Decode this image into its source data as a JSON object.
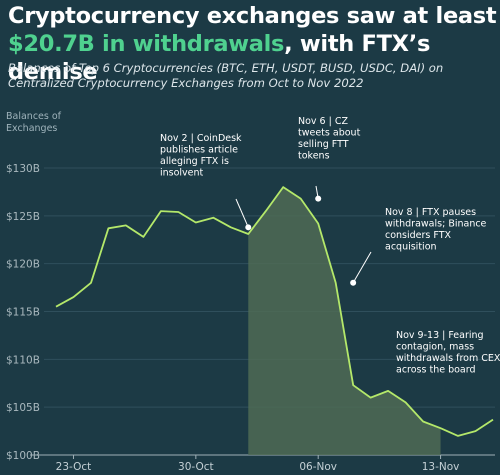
{
  "title": {
    "line1": "Cryptocurrency exchanges saw at least",
    "highlight": "$20.7B in withdrawals",
    "line2_rest": ", with FTX’s demise"
  },
  "subtitle": {
    "line1": "Balances of Top 6 Cryptocurrencies (BTC, ETH, USDT, BUSD, USDC, DAI) on",
    "line2": "Centralized Cryptocurrency Exchanges from Oct to Nov 2022"
  },
  "colors": {
    "background": "#1c3a45",
    "line": "#b4e86a",
    "area": "#4f6b55",
    "grid": "#2f4f5c",
    "highlight_text": "#4fd18f"
  },
  "chart_data": {
    "type": "line",
    "title": "Cryptocurrency exchanges saw at least $20.7B in withdrawals, with FTX’s demise",
    "ylabel_lines": [
      "Balances of",
      "Exchanges"
    ],
    "xlabel": "",
    "ylim": [
      100,
      130
    ],
    "yticks": [
      100,
      105,
      110,
      115,
      120,
      125,
      130
    ],
    "ytick_labels": [
      "$100B",
      "$105B",
      "$110B",
      "$115B",
      "$120B",
      "$125B",
      "$130B"
    ],
    "xlim": [
      "2022-10-22",
      "2022-11-16"
    ],
    "xticks": [
      "2022-10-23",
      "2022-10-30",
      "2022-11-06",
      "2022-11-13"
    ],
    "xtick_labels": [
      "23-Oct",
      "30-Oct",
      "06-Nov",
      "13-Nov"
    ],
    "grid": true,
    "shaded_range": [
      "2022-11-02",
      "2022-11-13"
    ],
    "series": [
      {
        "x": [
          "2022-10-22",
          "2022-10-23",
          "2022-10-24",
          "2022-10-25",
          "2022-10-26",
          "2022-10-27",
          "2022-10-28",
          "2022-10-29",
          "2022-10-30",
          "2022-10-31",
          "2022-11-01",
          "2022-11-02",
          "2022-11-03",
          "2022-11-04",
          "2022-11-05",
          "2022-11-06",
          "2022-11-07",
          "2022-11-08",
          "2022-11-09",
          "2022-11-10",
          "2022-11-11",
          "2022-11-12",
          "2022-11-13",
          "2022-11-14",
          "2022-11-15",
          "2022-11-16"
        ],
        "values": [
          115.5,
          116.5,
          118.0,
          123.7,
          124.0,
          122.8,
          125.5,
          125.4,
          124.3,
          124.8,
          123.8,
          123.1,
          125.5,
          128.0,
          126.8,
          124.2,
          118.0,
          107.3,
          106.0,
          106.7,
          105.5,
          103.5,
          102.8,
          102.0,
          102.5,
          103.7
        ]
      }
    ],
    "annotations": [
      {
        "x": "2022-11-02",
        "y": 123.8,
        "lines": [
          "Nov 2 | CoinDesk",
          "publishes article",
          "alleging FTX is",
          "insolvent"
        ]
      },
      {
        "x": "2022-11-06",
        "y": 126.8,
        "lines": [
          "Nov 6 | CZ",
          "tweets about",
          "selling FTT",
          "tokens"
        ]
      },
      {
        "x": "2022-11-08",
        "y": 118.0,
        "lines": [
          "Nov 8 | FTX pauses",
          "withdrawals; Binance",
          "considers FTX",
          "acquisition"
        ]
      },
      {
        "x": "2022-11-12",
        "y": 105.5,
        "lines": [
          "Nov 9-13 | Fearing",
          "contagion, mass",
          "withdrawals from CEXs",
          "across the board"
        ]
      }
    ]
  }
}
